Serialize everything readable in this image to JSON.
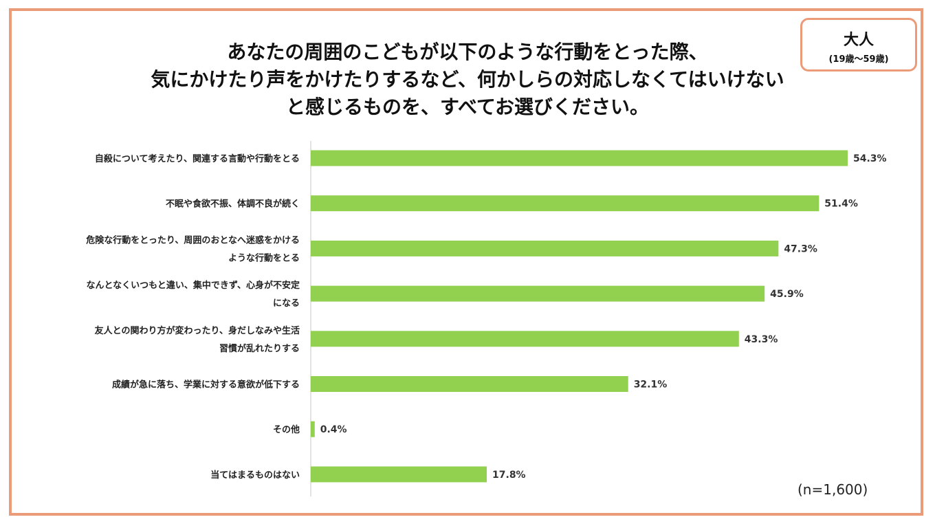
{
  "header": {
    "title_lines": [
      "あなたの周囲のこどもが以下のような行動をとった際、",
      "気にかけたり声をかけたりするなど、何かしらの対応しなくてはいけない",
      "と感じるものを、すべてお選びください。"
    ]
  },
  "badge": {
    "label": "大人",
    "sublabel": "(19歳～59歳)"
  },
  "note": "(n=1,600)",
  "colors": {
    "bar": "#92d050",
    "frame": "#ec9b78",
    "axis": "#d9d9d9"
  },
  "chart_data": {
    "type": "bar",
    "orientation": "horizontal",
    "title": "あなたの周囲のこどもが以下のような行動をとった際、気にかけたり声をかけたりするなど、何かしらの対応しなくてはいけないと感じるものを、すべてお選びください。",
    "xlim": [
      0,
      55
    ],
    "unit": "%",
    "categories": [
      [
        "自殺について考えたり、関連する言動や行動をとる"
      ],
      [
        "不眠や食欲不振、体調不良が続く"
      ],
      [
        "危険な行動をとったり、周囲のおとなへ迷惑をかける",
        "ような行動をとる"
      ],
      [
        "なんとなくいつもと違い、集中できず、心身が不安定",
        "になる"
      ],
      [
        "友人との関わり方が変わったり、身だしなみや生活",
        "習慣が乱れたりする"
      ],
      [
        "成績が急に落ち、学業に対する意欲が低下する"
      ],
      [
        "その他"
      ],
      [
        "当てはまるものはない"
      ]
    ],
    "values": [
      54.3,
      51.4,
      47.3,
      45.9,
      43.3,
      32.1,
      0.4,
      17.8
    ],
    "value_labels": [
      "54.3%",
      "51.4%",
      "47.3%",
      "45.9%",
      "43.3%",
      "32.1%",
      "0.4%",
      "17.8%"
    ]
  }
}
